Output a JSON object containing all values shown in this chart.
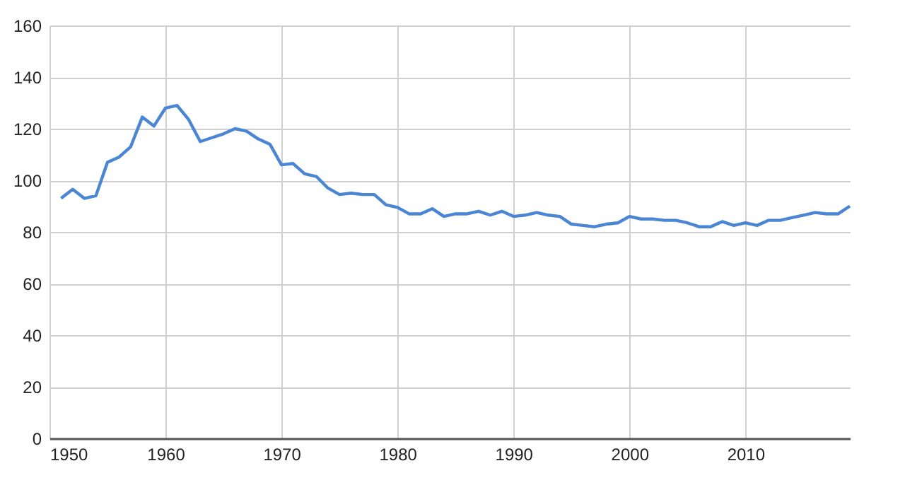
{
  "chart_data": {
    "type": "line",
    "x": [
      1951,
      1952,
      1953,
      1954,
      1955,
      1956,
      1957,
      1958,
      1959,
      1960,
      1961,
      1962,
      1963,
      1964,
      1965,
      1966,
      1967,
      1968,
      1969,
      1970,
      1971,
      1972,
      1973,
      1974,
      1975,
      1976,
      1977,
      1978,
      1979,
      1980,
      1981,
      1982,
      1983,
      1984,
      1985,
      1986,
      1987,
      1988,
      1989,
      1990,
      1991,
      1992,
      1993,
      1994,
      1995,
      1996,
      1997,
      1998,
      1999,
      2000,
      2001,
      2002,
      2003,
      2004,
      2005,
      2006,
      2007,
      2008,
      2009,
      2010,
      2011,
      2012,
      2013,
      2014,
      2015,
      2016,
      2017,
      2018,
      2019
    ],
    "series": [
      {
        "color": "#4a86d4",
        "values": [
          93,
          96.5,
          93,
          94,
          107,
          109,
          113,
          124.5,
          121,
          128,
          129,
          123.5,
          115,
          116.5,
          118,
          120,
          119,
          116,
          114,
          106,
          106.5,
          102.5,
          101.5,
          97,
          94.5,
          95,
          94.5,
          94.5,
          90.5,
          89.5,
          87,
          87,
          89,
          86,
          87,
          87,
          88,
          86.5,
          88,
          86,
          86.5,
          87.5,
          86.5,
          86,
          83,
          82.5,
          82,
          83,
          83.5,
          86,
          85,
          85,
          84.5,
          84.5,
          83.5,
          82,
          82,
          84,
          82.5,
          83.5,
          82.5,
          84.5,
          84.5,
          85.5,
          86.5,
          87.5,
          87,
          87,
          90
        ]
      }
    ],
    "xlim": [
      1950,
      2019
    ],
    "xticks": [
      1950,
      1960,
      1970,
      1980,
      1990,
      2000,
      2010
    ],
    "ylim": [
      0,
      160
    ],
    "yticks": [
      0,
      20,
      40,
      60,
      80,
      100,
      120,
      140,
      160
    ],
    "grid": true,
    "marker": "none",
    "line_style": "solid"
  }
}
